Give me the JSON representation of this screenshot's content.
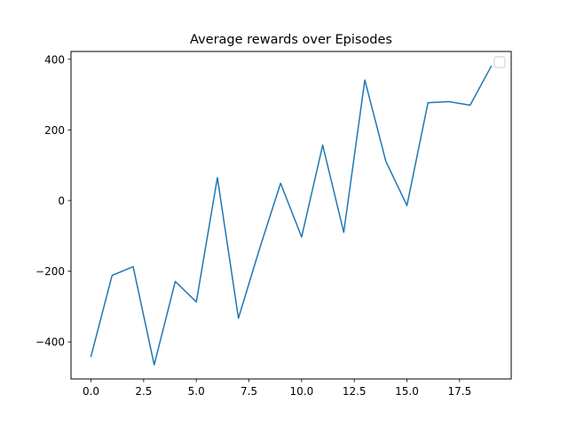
{
  "chart_data": {
    "type": "line",
    "title": "Average rewards over Episodes",
    "xlabel": "",
    "ylabel": "",
    "xlim": [
      -0.95,
      19.95
    ],
    "ylim": [
      -505,
      422
    ],
    "x_ticks": [
      0.0,
      2.5,
      5.0,
      7.5,
      10.0,
      12.5,
      15.0,
      17.5
    ],
    "x_tick_labels": [
      "0.0",
      "2.5",
      "5.0",
      "7.5",
      "10.0",
      "12.5",
      "15.0",
      "17.5"
    ],
    "y_ticks": [
      -400,
      -200,
      0,
      200,
      400
    ],
    "y_tick_labels": [
      "−400",
      "−200",
      "0",
      "200",
      "400"
    ],
    "grid": false,
    "legend": {
      "placement": "top-right",
      "entries": []
    },
    "colors": {
      "line": "#1f77b4",
      "axes": "#000000",
      "legend_border": "#cccccc"
    },
    "series": [
      {
        "x": [
          0,
          1,
          2,
          3,
          4,
          5,
          6,
          7,
          8,
          9,
          10,
          11,
          12,
          13,
          14,
          15,
          16,
          17,
          18,
          19
        ],
        "values": [
          -441,
          -212,
          -187,
          -465,
          -229,
          -287,
          65,
          -333,
          -137,
          49,
          -103,
          157,
          -90,
          341,
          111,
          -14,
          277,
          280,
          270,
          380
        ]
      }
    ]
  }
}
